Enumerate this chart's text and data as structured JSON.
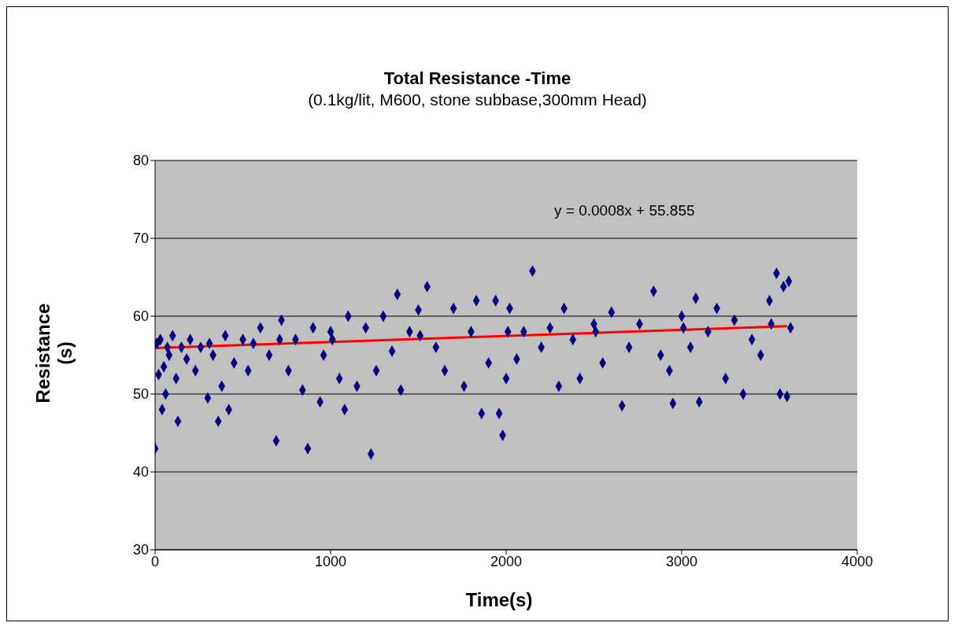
{
  "chart_data": {
    "type": "scatter",
    "title": "Total Resistance -Time",
    "subtitle": "(0.1kg/lit, M600, stone subbase,300mm Head)",
    "xlabel": "Time(s)",
    "ylabel": "Resistance (s)",
    "xlim": [
      0,
      4000
    ],
    "xticks": [
      0,
      1000,
      2000,
      3000,
      4000
    ],
    "ylim": [
      30,
      80
    ],
    "yticks": [
      30,
      40,
      50,
      60,
      70,
      80
    ],
    "grid": "y",
    "marker": "diamond",
    "annotations": [
      "y = 0.0008x + 55.855"
    ],
    "series": [
      {
        "color": "#000080",
        "x": [
          0,
          10,
          20,
          30,
          40,
          50,
          60,
          80,
          100,
          120,
          130,
          150,
          180,
          200,
          230,
          260,
          300,
          330,
          360,
          380,
          400,
          420,
          450,
          500,
          530,
          560,
          600,
          650,
          690,
          720,
          760,
          800,
          840,
          870,
          900,
          940,
          960,
          1000,
          1050,
          1080,
          1100,
          1150,
          1200,
          1230,
          1260,
          1300,
          1350,
          1380,
          1400,
          1450,
          1500,
          1550,
          1600,
          1650,
          1700,
          1760,
          1800,
          1830,
          1860,
          1900,
          1940,
          1960,
          1980,
          2000,
          2020,
          2060,
          2100,
          2150,
          2200,
          2250,
          2300,
          2330,
          2380,
          2420,
          2500,
          2550,
          2600,
          2660,
          2700,
          2760,
          2840,
          2880,
          2930,
          2950,
          3000,
          3050,
          3080,
          3100,
          3150,
          3200,
          3250,
          3300,
          3350,
          3400,
          3450,
          3500,
          3540,
          3560,
          3580,
          3600,
          3610,
          3620,
          70,
          310,
          710,
          1010,
          1510,
          2010,
          2510,
          3010,
          3510
        ],
        "values": [
          43.0,
          56.5,
          52.5,
          57,
          48,
          53.5,
          50,
          55,
          57.5,
          52,
          46.5,
          56,
          54.5,
          57,
          53,
          56,
          49.5,
          55,
          46.5,
          51,
          57.5,
          48,
          54,
          57,
          53,
          56.5,
          58.5,
          55,
          44,
          59.5,
          53,
          57,
          50.5,
          43,
          58.5,
          49,
          55,
          58,
          52,
          48,
          60,
          51,
          58.5,
          42.3,
          53,
          60,
          55.5,
          62.8,
          50.5,
          58,
          60.8,
          63.8,
          56,
          53,
          61,
          51,
          58,
          62,
          47.5,
          54,
          62,
          47.5,
          44.7,
          52,
          61,
          54.5,
          58,
          65.8,
          56,
          58.5,
          51,
          61,
          57,
          52,
          59,
          54,
          60.5,
          48.5,
          56,
          59,
          63.2,
          55,
          53,
          48.8,
          60,
          56,
          62.3,
          49,
          58,
          61,
          52,
          59.5,
          50,
          57,
          55,
          62,
          65.5,
          50,
          63.8,
          49.7,
          64.5,
          58.5,
          56,
          56.5,
          57,
          57,
          57.5,
          58,
          58,
          58.5,
          59
        ]
      },
      {
        "type": "line",
        "color": "#ff0000",
        "x": [
          0,
          3600
        ],
        "values": [
          55.9,
          58.7
        ],
        "marker": "none",
        "line_style": "solid"
      }
    ]
  }
}
